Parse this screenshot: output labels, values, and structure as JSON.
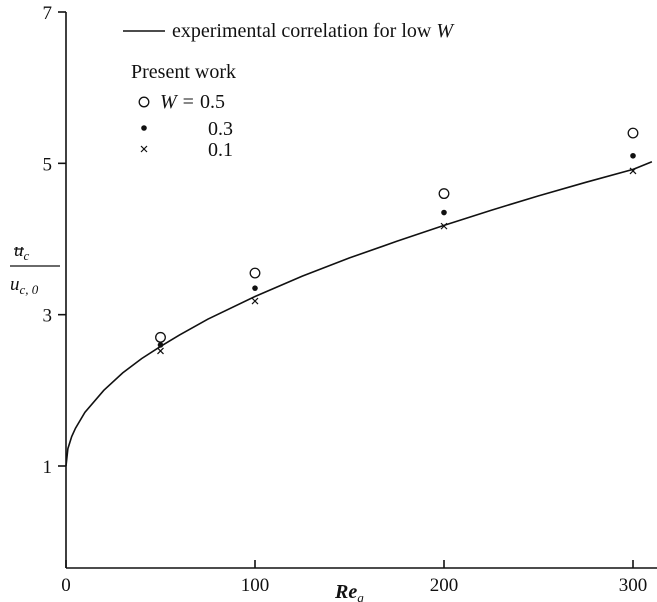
{
  "chart_data": {
    "type": "scatter",
    "title": "",
    "xlabel": {
      "main": "Re",
      "sub": "g"
    },
    "ylabel": {
      "numerator_main": "u",
      "numerator_sub": "c",
      "denominator_main": "u",
      "denominator_sub": "c, 0"
    },
    "xlim": [
      0,
      310
    ],
    "ylim": [
      0,
      7
    ],
    "xticks": [
      0,
      100,
      200,
      300
    ],
    "xtick_labels": [
      "0",
      "100",
      "200",
      "300"
    ],
    "yticks": [
      1,
      3,
      5,
      7
    ],
    "ytick_labels": [
      "1",
      "3",
      "5",
      "7"
    ],
    "grid": false,
    "legend": {
      "placement": "top-left",
      "line_label_prefix": "experimental correlation for low ",
      "line_label_symbol": "W",
      "heading": "Present work",
      "symbol": "W",
      "equals": "=",
      "entries": [
        "0.5",
        "0.3",
        "0.1"
      ]
    },
    "correlation_curve": {
      "name": "experimental correlation for low W",
      "x": [
        0,
        1,
        3,
        5,
        10,
        20,
        30,
        40,
        50,
        60,
        75,
        100,
        125,
        150,
        175,
        200,
        225,
        250,
        275,
        300,
        310
      ],
      "y": [
        1.0,
        1.23,
        1.39,
        1.5,
        1.71,
        2.0,
        2.23,
        2.42,
        2.58,
        2.73,
        2.94,
        3.24,
        3.51,
        3.75,
        3.97,
        4.18,
        4.38,
        4.57,
        4.75,
        4.92,
        5.02
      ]
    },
    "series": [
      {
        "name": "0.5",
        "marker": "open-circle",
        "x": [
          50,
          100,
          200,
          300
        ],
        "y": [
          2.7,
          3.55,
          4.6,
          5.4
        ]
      },
      {
        "name": "0.3",
        "marker": "filled-dot",
        "x": [
          50,
          100,
          200,
          300
        ],
        "y": [
          2.6,
          3.35,
          4.35,
          5.1
        ]
      },
      {
        "name": "0.1",
        "marker": "x",
        "x": [
          50,
          100,
          200,
          300
        ],
        "y": [
          2.52,
          3.18,
          4.17,
          4.9
        ]
      }
    ]
  }
}
